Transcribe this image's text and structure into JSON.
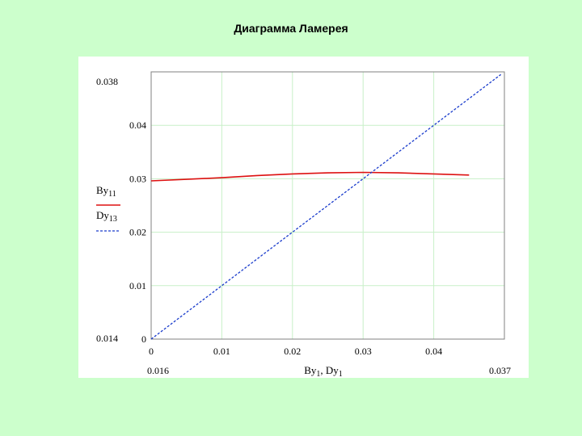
{
  "page": {
    "title": "Диаграмма Ламерея"
  },
  "chart_data": {
    "type": "line",
    "title": "Диаграмма Ламерея",
    "xlabel": "By1 , Dy1",
    "ylabel": "",
    "xlim": [
      0,
      0.05
    ],
    "ylim": [
      0,
      0.05
    ],
    "x_ticks": [
      0,
      0.01,
      0.02,
      0.03,
      0.04
    ],
    "y_ticks": [
      0,
      0.01,
      0.02,
      0.03,
      0.04
    ],
    "x_tick_labels": [
      "0",
      "0.01",
      "0.02",
      "0.03",
      "0.04"
    ],
    "y_tick_labels": [
      "0",
      "0.01",
      "0.02",
      "0.03",
      "0.04"
    ],
    "corner_labels": {
      "y_max": "0.038",
      "y_min": "0.014",
      "x_min": "0.016",
      "x_max": "0.037"
    },
    "xlabel_parts": {
      "b": "By",
      "b_sub": "1",
      "sep": ", ",
      "d": "Dy",
      "d_sub": "1"
    },
    "legend": [
      {
        "label": "By",
        "sub": "11",
        "color": "#dd1111",
        "style": "solid"
      },
      {
        "label": "Dy",
        "sub": "13",
        "color": "#1a3ccc",
        "style": "dashed"
      }
    ],
    "grid": true,
    "series": [
      {
        "name": "By11",
        "color": "#dd1111",
        "style": "solid",
        "x": [
          0,
          0.005,
          0.01,
          0.015,
          0.02,
          0.025,
          0.03,
          0.035,
          0.04,
          0.045
        ],
        "y": [
          0.0296,
          0.0299,
          0.0302,
          0.0306,
          0.0309,
          0.0311,
          0.0312,
          0.0311,
          0.0309,
          0.0307
        ]
      },
      {
        "name": "Dy13",
        "color": "#1a3ccc",
        "style": "dashed",
        "x": [
          0,
          0.0495
        ],
        "y": [
          0,
          0.0495
        ]
      }
    ]
  }
}
